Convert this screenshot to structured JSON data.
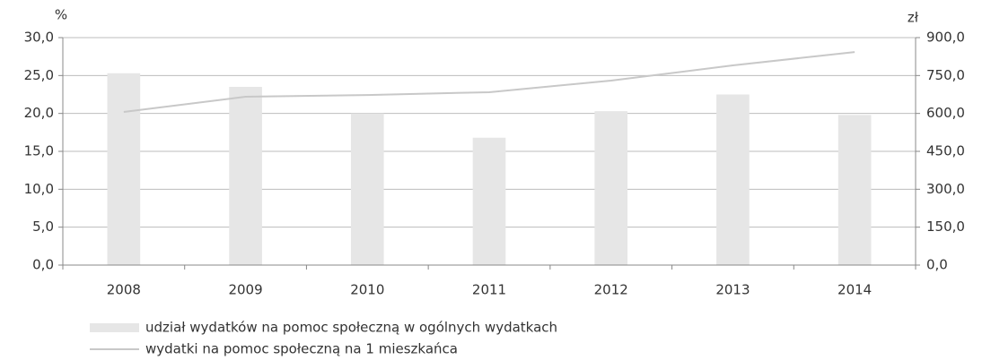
{
  "chart_data": {
    "type": "bar",
    "y_label": "%",
    "y2_label": "zł",
    "categories": [
      "2008",
      "2009",
      "2010",
      "2011",
      "2012",
      "2013",
      "2014"
    ],
    "series": [
      {
        "name": "udział wydatków na pomoc społeczną w ogólnych wydatkach",
        "type": "bar",
        "color": "#e6e6e6",
        "values": [
          25.3,
          23.5,
          20.0,
          16.8,
          20.3,
          22.5,
          19.8
        ]
      },
      {
        "name": "wydatki na pomoc społeczną na 1 mieszkańca",
        "type": "line",
        "axis": "y2",
        "color": "#c8c8c8",
        "values": [
          606,
          666,
          673,
          684,
          730,
          790,
          843
        ]
      }
    ],
    "ylim": [
      0,
      30
    ],
    "yticks": [
      {
        "value": 0,
        "label": "0,0"
      },
      {
        "value": 5,
        "label": "5,0"
      },
      {
        "value": 10,
        "label": "10,0"
      },
      {
        "value": 15,
        "label": "15,0"
      },
      {
        "value": 20,
        "label": "20,0"
      },
      {
        "value": 25,
        "label": "25,0"
      },
      {
        "value": 30,
        "label": "30,0"
      }
    ],
    "y2lim": [
      0,
      900
    ],
    "y2ticks": [
      {
        "value": 0,
        "label": "0,0"
      },
      {
        "value": 150,
        "label": "150,0"
      },
      {
        "value": 300,
        "label": "300,0"
      },
      {
        "value": 450,
        "label": "450,0"
      },
      {
        "value": 600,
        "label": "600,0"
      },
      {
        "value": 750,
        "label": "750,0"
      },
      {
        "value": 900,
        "label": "900,0"
      }
    ],
    "grid": true,
    "legend": "bottom"
  }
}
